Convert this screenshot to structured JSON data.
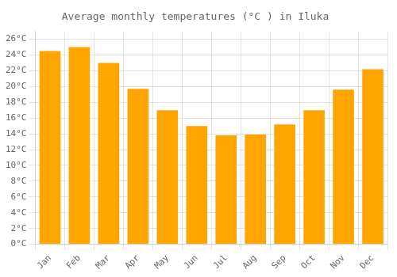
{
  "chart_data": {
    "type": "bar",
    "title": "Average monthly temperatures (°C ) in Iluka",
    "categories": [
      "Jan",
      "Feb",
      "Mar",
      "Apr",
      "May",
      "Jun",
      "Jul",
      "Aug",
      "Sep",
      "Oct",
      "Nov",
      "Dec"
    ],
    "values": [
      24.5,
      25.0,
      23.0,
      19.7,
      17.0,
      15.0,
      13.8,
      13.9,
      15.2,
      17.0,
      19.6,
      22.2
    ],
    "color": "#FFA500",
    "ylim": [
      0,
      27
    ],
    "yticks": [
      {
        "value": 0,
        "label": "0°C"
      },
      {
        "value": 2,
        "label": "2°C"
      },
      {
        "value": 4,
        "label": "4°C"
      },
      {
        "value": 6,
        "label": "6°C"
      },
      {
        "value": 8,
        "label": "8°C"
      },
      {
        "value": 10,
        "label": "10°C"
      },
      {
        "value": 12,
        "label": "12°C"
      },
      {
        "value": 14,
        "label": "14°C"
      },
      {
        "value": 16,
        "label": "16°C"
      },
      {
        "value": 18,
        "label": "18°C"
      },
      {
        "value": 20,
        "label": "20°C"
      },
      {
        "value": 22,
        "label": "22°C"
      },
      {
        "value": 24,
        "label": "24°C"
      },
      {
        "value": 26,
        "label": "26°C"
      }
    ],
    "grid": true
  }
}
